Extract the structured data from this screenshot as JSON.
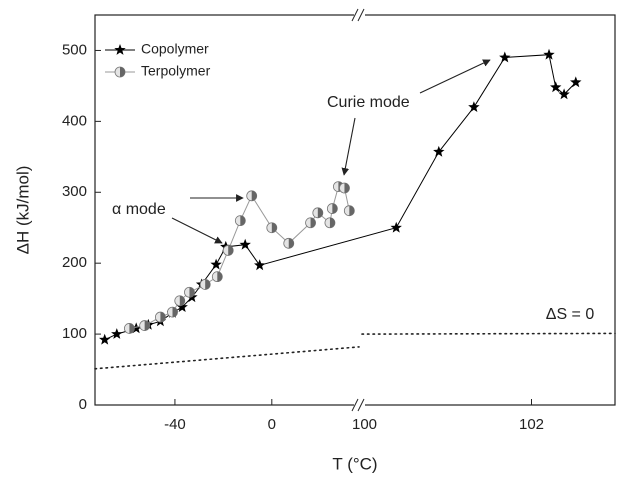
{
  "chart_data": {
    "type": "line",
    "xlabel": "T (°C)",
    "ylabel": "ΔH (kJ/mol)",
    "x_segments": [
      {
        "xlim": [
          -73,
          36
        ],
        "xticks": [
          -40,
          0
        ]
      },
      {
        "xlim": [
          99.97,
          103
        ],
        "xticks": [
          100,
          102
        ]
      }
    ],
    "ylim": [
      0,
      550
    ],
    "yticks": [
      0,
      100,
      200,
      300,
      400,
      500
    ],
    "legend": "upper left",
    "series": [
      {
        "name": "Copolymer",
        "color": "#000000",
        "marker": "star",
        "x": [
          -69,
          -64,
          -56,
          -51,
          -46,
          -41,
          -37,
          -33,
          -29,
          -23,
          -19,
          -11,
          -5,
          100.38,
          100.89,
          101.31,
          101.68,
          102.21,
          102.29,
          102.39,
          102.53
        ],
        "values": [
          92,
          100,
          108,
          113,
          118,
          130,
          138,
          152,
          170,
          198,
          223,
          226,
          197,
          250,
          357,
          420,
          490,
          494,
          448,
          438,
          455
        ]
      },
      {
        "name": "Terpolymer",
        "color": "#999999",
        "marker": "half-circle",
        "x": [
          -58.8,
          -52.5,
          -46,
          -41,
          -38,
          -34,
          -27.5,
          -22.5,
          -18,
          -13,
          -8.3,
          0,
          7,
          16,
          19,
          24,
          25,
          27.5,
          30,
          32
        ],
        "values": [
          108,
          112,
          124,
          131,
          147,
          159,
          170,
          181,
          218,
          260,
          295,
          250,
          228,
          257,
          271,
          257,
          277,
          308,
          306,
          274
        ]
      }
    ],
    "reference_line": {
      "label": "ΔS = 0",
      "x": [
        -73,
        36,
        null,
        99.97,
        103
      ],
      "values": [
        51,
        82,
        null,
        100,
        101
      ]
    },
    "annotations": [
      "α mode",
      "Curie mode"
    ]
  }
}
